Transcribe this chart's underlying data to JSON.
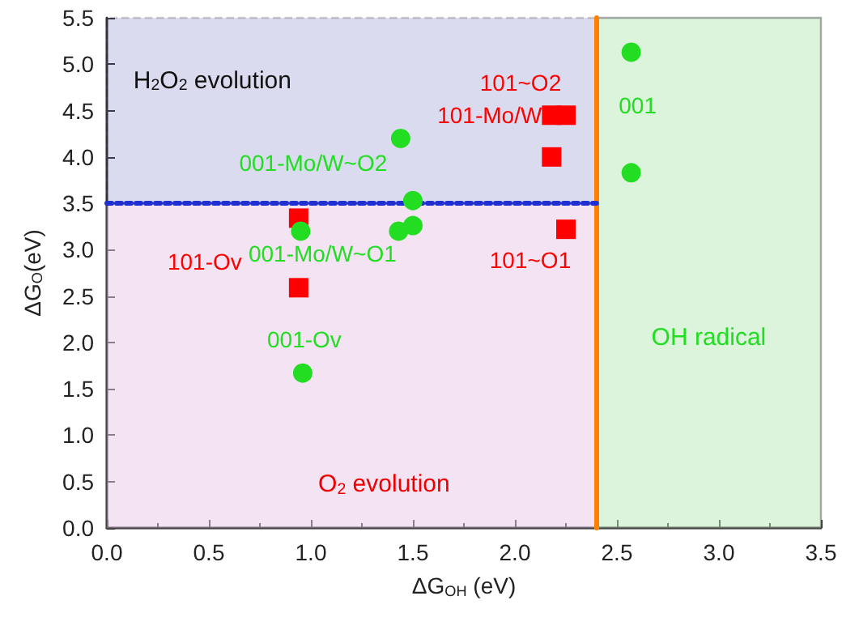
{
  "chart_data": {
    "type": "scatter",
    "xlabel": "ΔG$_{OH}$ (eV)",
    "ylabel": "ΔG$_{O}$(eV)",
    "series": [
      {
        "color": "#ff0000",
        "marker": "square",
        "x": [
          0.94,
          0.94,
          2.18,
          2.25,
          2.18,
          2.25
        ],
        "values": [
          3.34,
          2.59,
          4.45,
          4.45,
          4.0,
          3.22
        ]
      },
      {
        "color": "#22dd22",
        "marker": "circle",
        "x": [
          2.57,
          2.57,
          1.44,
          1.5,
          0.95,
          1.43,
          1.5,
          0.96
        ],
        "values": [
          5.13,
          3.83,
          4.2,
          3.53,
          3.2,
          3.2,
          3.26,
          1.67
        ]
      }
    ],
    "annotations": [
      {
        "text": "101-Ov",
        "x": 0.94,
        "y": 2.59
      },
      {
        "text": "101-Mo/W",
        "x": 2.18,
        "y": 4.45
      },
      {
        "text": "101~O2",
        "x": 2.25,
        "y": 4.45
      },
      {
        "text": "101~O1",
        "x": 2.25,
        "y": 3.22
      },
      {
        "text": "001",
        "x": 2.57,
        "y": 5.13
      },
      {
        "text": "001-Mo/W~O2",
        "x": 1.44,
        "y": 4.2
      },
      {
        "text": "001-Mo/W~O1",
        "x": 1.43,
        "y": 3.2
      },
      {
        "text": "001-Ov",
        "x": 0.96,
        "y": 1.67
      }
    ],
    "bands": [
      {
        "axis": "y",
        "from": 3.5,
        "to": 5.5,
        "label": "H$_{2}$O$_{2}$ evolution",
        "color": "#5b5bb8"
      },
      {
        "axis": "y",
        "from": 0,
        "to": 3.5,
        "label": "O$_{2}$ evolution",
        "color": "#e8c8e8"
      },
      {
        "axis": "x",
        "from": 2.4,
        "to": 3.5,
        "label": "OH radical",
        "color": "#b8eab8"
      }
    ],
    "ref_lines": [
      {
        "axis": "x",
        "value": 2.4,
        "color": "#ff8000",
        "line_style": "solid"
      },
      {
        "axis": "y",
        "value": 3.5,
        "color": "#1f2fd0",
        "line_style": "dotted"
      }
    ],
    "xlim": [
      0,
      3.5
    ],
    "ylim": [
      0,
      5.5
    ],
    "xticks": [
      {
        "value": 0,
        "label": "0.0"
      },
      0.5,
      {
        "value": 1,
        "label": "1.0"
      },
      1.5,
      {
        "value": 2,
        "label": "2.0"
      },
      2.5,
      {
        "value": 3,
        "label": "3.0"
      },
      3.5
    ],
    "yticks": [
      {
        "value": 0,
        "label": "0.0"
      },
      0.5,
      {
        "value": 1,
        "label": "1.0"
      },
      1.5,
      {
        "value": 2,
        "label": "2.0"
      },
      2.5,
      {
        "value": 3,
        "label": "3.0"
      },
      3.5,
      {
        "value": 4,
        "label": "4.0"
      },
      4.5,
      {
        "value": 5,
        "label": "5.0"
      },
      5.5
    ],
    "grid": false
  }
}
